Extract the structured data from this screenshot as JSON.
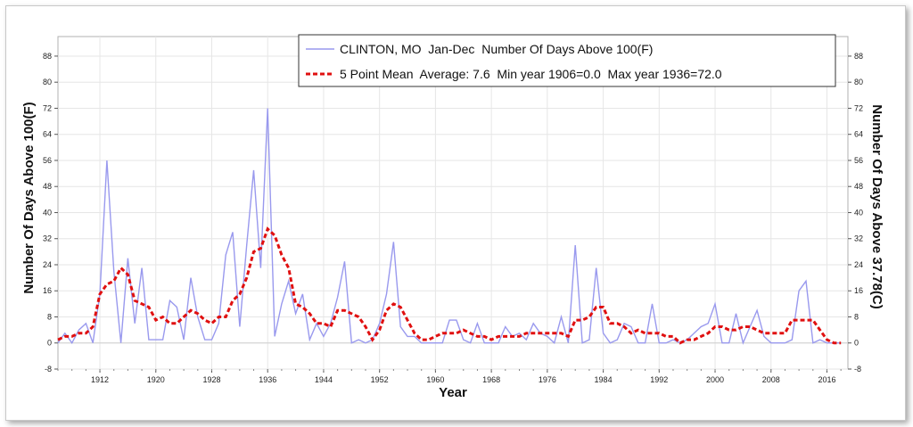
{
  "chart_data": {
    "type": "line",
    "title": "",
    "xlabel": "Year",
    "ylabel": "Number Of Days Above 100(F)",
    "ylabel_right": "Number Of Days Above 37.78(C)",
    "xlim": [
      1906,
      2019
    ],
    "ylim": [
      -8,
      94
    ],
    "x_ticks": [
      "1912",
      "1920",
      "1928",
      "1936",
      "1944",
      "1952",
      "1960",
      "1968",
      "1976",
      "1984",
      "1992",
      "2000",
      "2008",
      "2016"
    ],
    "y_ticks": [
      "-8",
      "0",
      "8",
      "16",
      "24",
      "32",
      "40",
      "48",
      "56",
      "64",
      "72",
      "80",
      "88"
    ],
    "grid": true,
    "legend_position": "top-right",
    "series": [
      {
        "name": "CLINTON, MO  Jan-Dec  Number Of Days Above 100(F)",
        "color": "#9999ee",
        "style": "solid",
        "x": [
          1906,
          1907,
          1908,
          1909,
          1910,
          1911,
          1912,
          1913,
          1914,
          1915,
          1916,
          1917,
          1918,
          1919,
          1920,
          1921,
          1922,
          1923,
          1924,
          1925,
          1926,
          1927,
          1928,
          1929,
          1930,
          1931,
          1932,
          1933,
          1934,
          1935,
          1936,
          1937,
          1938,
          1939,
          1940,
          1941,
          1942,
          1943,
          1944,
          1945,
          1946,
          1947,
          1948,
          1949,
          1950,
          1951,
          1952,
          1953,
          1954,
          1955,
          1956,
          1957,
          1958,
          1959,
          1960,
          1961,
          1962,
          1963,
          1964,
          1965,
          1966,
          1967,
          1968,
          1969,
          1970,
          1971,
          1972,
          1973,
          1974,
          1975,
          1976,
          1977,
          1978,
          1979,
          1980,
          1981,
          1982,
          1983,
          1984,
          1985,
          1986,
          1987,
          1988,
          1989,
          1990,
          1991,
          1992,
          1993,
          1994,
          1995,
          1996,
          1997,
          1998,
          1999,
          2000,
          2001,
          2002,
          2003,
          2004,
          2005,
          2006,
          2007,
          2008,
          2009,
          2010,
          2011,
          2012,
          2013,
          2014,
          2015,
          2016,
          2017,
          2018
        ],
        "values": [
          0,
          3,
          0,
          4,
          6,
          0,
          15,
          56,
          22,
          0,
          26,
          6,
          23,
          1,
          1,
          1,
          13,
          11,
          1,
          20,
          8,
          1,
          1,
          6,
          27,
          34,
          5,
          30,
          53,
          23,
          72,
          2,
          12,
          19,
          9,
          15,
          1,
          6,
          2,
          6,
          14,
          25,
          0,
          1,
          0,
          1,
          6,
          15,
          31,
          5,
          2,
          2,
          0,
          0,
          0,
          0,
          7,
          7,
          1,
          0,
          6,
          0,
          0,
          0,
          5,
          2,
          3,
          1,
          6,
          3,
          2,
          0,
          8,
          0,
          30,
          0,
          1,
          23,
          3,
          0,
          1,
          6,
          5,
          0,
          0,
          12,
          0,
          0,
          1,
          0,
          1,
          3,
          5,
          6,
          12,
          0,
          0,
          9,
          0,
          5,
          10,
          2,
          0,
          0,
          0,
          1,
          16,
          19,
          0,
          1,
          0,
          0,
          0
        ]
      },
      {
        "name": "5 Point Mean  Average: 7.6  Min year 1906=0.0  Max year 1936=72.0",
        "color": "#e01010",
        "style": "dashed",
        "x": [
          1906,
          1907,
          1908,
          1909,
          1910,
          1911,
          1912,
          1913,
          1914,
          1915,
          1916,
          1917,
          1918,
          1919,
          1920,
          1921,
          1922,
          1923,
          1924,
          1925,
          1926,
          1927,
          1928,
          1929,
          1930,
          1931,
          1932,
          1933,
          1934,
          1935,
          1936,
          1937,
          1938,
          1939,
          1940,
          1941,
          1942,
          1943,
          1944,
          1945,
          1946,
          1947,
          1948,
          1949,
          1950,
          1951,
          1952,
          1953,
          1954,
          1955,
          1956,
          1957,
          1958,
          1959,
          1960,
          1961,
          1962,
          1963,
          1964,
          1965,
          1966,
          1967,
          1968,
          1969,
          1970,
          1971,
          1972,
          1973,
          1974,
          1975,
          1976,
          1977,
          1978,
          1979,
          1980,
          1981,
          1982,
          1983,
          1984,
          1985,
          1986,
          1987,
          1988,
          1989,
          1990,
          1991,
          1992,
          1993,
          1994,
          1995,
          1996,
          1997,
          1998,
          1999,
          2000,
          2001,
          2002,
          2003,
          2004,
          2005,
          2006,
          2007,
          2008,
          2009,
          2010,
          2011,
          2012,
          2013,
          2014,
          2015,
          2016,
          2017,
          2018
        ],
        "values": [
          1,
          2,
          2,
          3,
          3,
          5,
          15,
          18,
          19,
          23,
          21,
          13,
          12,
          11,
          7,
          8,
          6,
          6,
          8,
          10,
          9,
          7,
          6,
          8,
          8,
          13,
          15,
          20,
          28,
          29,
          35,
          33,
          27,
          23,
          12,
          11,
          9,
          6,
          6,
          5,
          10,
          10,
          9,
          8,
          5,
          1,
          4,
          10,
          12,
          11,
          7,
          3,
          1,
          1,
          2,
          3,
          3,
          3,
          4,
          3,
          2,
          2,
          1,
          2,
          2,
          2,
          2,
          3,
          3,
          3,
          3,
          3,
          3,
          2,
          7,
          7,
          8,
          11,
          11,
          6,
          6,
          5,
          3,
          4,
          3,
          3,
          3,
          2,
          2,
          0,
          1,
          1,
          2,
          3,
          5,
          5,
          4,
          4,
          5,
          5,
          4,
          3,
          3,
          3,
          3,
          7,
          7,
          7,
          7,
          4,
          1,
          0,
          0
        ]
      }
    ]
  }
}
